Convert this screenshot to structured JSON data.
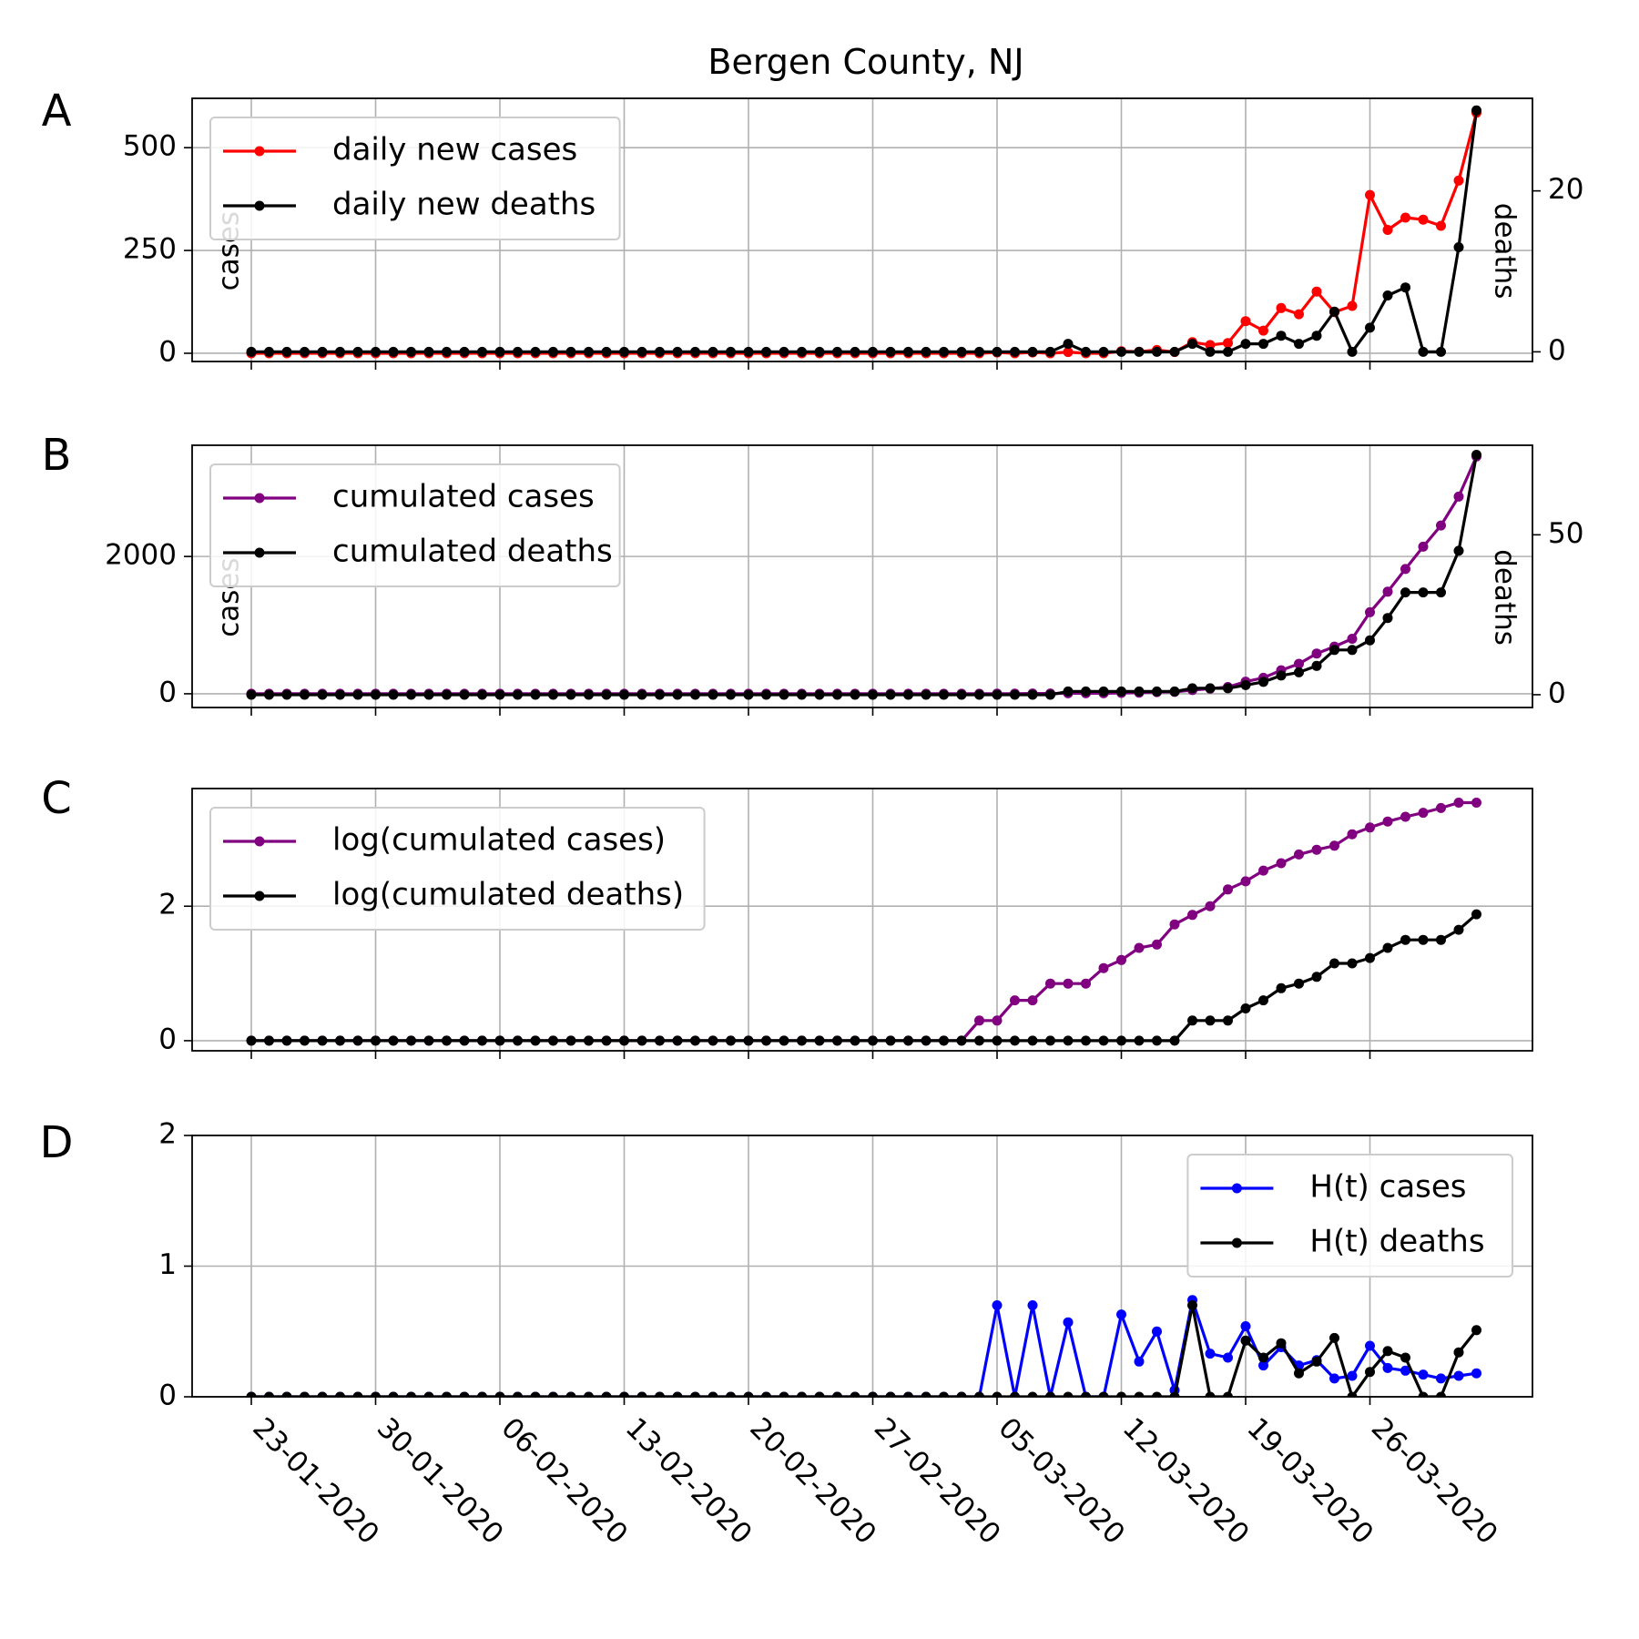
{
  "chart_data": {
    "type": "line",
    "title": "Bergen County, NJ",
    "x_tick_labels": [
      "23-01-2020",
      "30-01-2020",
      "06-02-2020",
      "13-02-2020",
      "20-02-2020",
      "27-02-2020",
      "05-03-2020",
      "12-03-2020",
      "19-03-2020",
      "26-03-2020"
    ],
    "x_start_date": "23-01-2020",
    "x": [
      "23-01-2020",
      "24-01-2020",
      "25-01-2020",
      "26-01-2020",
      "27-01-2020",
      "28-01-2020",
      "29-01-2020",
      "30-01-2020",
      "31-01-2020",
      "01-02-2020",
      "02-02-2020",
      "03-02-2020",
      "04-02-2020",
      "05-02-2020",
      "06-02-2020",
      "07-02-2020",
      "08-02-2020",
      "09-02-2020",
      "10-02-2020",
      "11-02-2020",
      "12-02-2020",
      "13-02-2020",
      "14-02-2020",
      "15-02-2020",
      "16-02-2020",
      "17-02-2020",
      "18-02-2020",
      "19-02-2020",
      "20-02-2020",
      "21-02-2020",
      "22-02-2020",
      "23-02-2020",
      "24-02-2020",
      "25-02-2020",
      "26-02-2020",
      "27-02-2020",
      "28-02-2020",
      "29-02-2020",
      "01-03-2020",
      "02-03-2020",
      "03-03-2020",
      "04-03-2020",
      "05-03-2020",
      "06-03-2020",
      "07-03-2020",
      "08-03-2020",
      "09-03-2020",
      "10-03-2020",
      "11-03-2020",
      "12-03-2020",
      "13-03-2020",
      "14-03-2020",
      "15-03-2020",
      "16-03-2020",
      "17-03-2020",
      "18-03-2020",
      "19-03-2020",
      "20-03-2020",
      "21-03-2020",
      "22-03-2020",
      "23-03-2020",
      "24-03-2020",
      "25-03-2020",
      "26-03-2020",
      "27-03-2020",
      "28-03-2020",
      "29-03-2020",
      "30-03-2020",
      "31-03-2020",
      "01-04-2020"
    ],
    "panels": [
      {
        "letter": "A",
        "left_label": "cases",
        "right_label": "deaths",
        "y_left_ticks": [
          0,
          250,
          500
        ],
        "y_left_range": [
          -20,
          620
        ],
        "y_right_ticks": [
          0,
          20
        ],
        "y_right_range": [
          -1.2,
          31.5
        ],
        "legend_position": "upper left",
        "series": [
          {
            "name": "daily new cases",
            "axis": "left",
            "color": "#ff0000",
            "values": [
              0,
              0,
              0,
              0,
              0,
              0,
              0,
              0,
              0,
              0,
              0,
              0,
              0,
              0,
              0,
              0,
              0,
              0,
              0,
              0,
              0,
              0,
              0,
              0,
              0,
              0,
              0,
              0,
              0,
              0,
              0,
              0,
              0,
              0,
              0,
              0,
              0,
              0,
              0,
              0,
              0,
              0,
              2,
              0,
              2,
              0,
              3,
              0,
              0,
              5,
              4,
              8,
              3,
              27,
              20,
              25,
              78,
              55,
              110,
              95,
              150,
              100,
              115,
              385,
              300,
              330,
              325,
              310,
              420,
              585
            ]
          },
          {
            "name": "daily new deaths",
            "axis": "right",
            "color": "#000000",
            "values": [
              0,
              0,
              0,
              0,
              0,
              0,
              0,
              0,
              0,
              0,
              0,
              0,
              0,
              0,
              0,
              0,
              0,
              0,
              0,
              0,
              0,
              0,
              0,
              0,
              0,
              0,
              0,
              0,
              0,
              0,
              0,
              0,
              0,
              0,
              0,
              0,
              0,
              0,
              0,
              0,
              0,
              0,
              0,
              0,
              0,
              0,
              1,
              0,
              0,
              0,
              0,
              0,
              0,
              1,
              0,
              0,
              1,
              1,
              2,
              1,
              2,
              5,
              0,
              3,
              7,
              8,
              0,
              0,
              13,
              30
            ]
          }
        ]
      },
      {
        "letter": "B",
        "left_label": "cases",
        "right_label": "deaths",
        "y_left_ticks": [
          0,
          2000
        ],
        "y_left_range": [
          -200,
          3620
        ],
        "y_right_ticks": [
          0,
          50
        ],
        "y_right_range": [
          -4,
          78
        ],
        "legend_position": "upper left",
        "series": [
          {
            "name": "cumulated cases",
            "axis": "left",
            "color": "#800080",
            "values": [
              0,
              0,
              0,
              0,
              0,
              0,
              0,
              0,
              0,
              0,
              0,
              0,
              0,
              0,
              0,
              0,
              0,
              0,
              0,
              0,
              0,
              0,
              0,
              0,
              0,
              0,
              0,
              0,
              0,
              0,
              0,
              0,
              0,
              0,
              0,
              0,
              0,
              0,
              0,
              0,
              0,
              0,
              2,
              2,
              4,
              4,
              7,
              7,
              7,
              12,
              16,
              24,
              27,
              54,
              74,
              99,
              177,
              232,
              342,
              437,
              587,
              687,
              802,
              1187,
              1487,
              1817,
              2142,
              2452,
              2872,
              3457
            ]
          },
          {
            "name": "cumulated deaths",
            "axis": "right",
            "color": "#000000",
            "values": [
              0,
              0,
              0,
              0,
              0,
              0,
              0,
              0,
              0,
              0,
              0,
              0,
              0,
              0,
              0,
              0,
              0,
              0,
              0,
              0,
              0,
              0,
              0,
              0,
              0,
              0,
              0,
              0,
              0,
              0,
              0,
              0,
              0,
              0,
              0,
              0,
              0,
              0,
              0,
              0,
              0,
              0,
              0,
              0,
              0,
              0,
              1,
              1,
              1,
              1,
              1,
              1,
              1,
              2,
              2,
              2,
              3,
              4,
              6,
              7,
              9,
              14,
              14,
              17,
              24,
              32,
              32,
              32,
              45,
              75
            ]
          }
        ]
      },
      {
        "letter": "C",
        "y_left_ticks": [
          0,
          2
        ],
        "y_left_range": [
          -0.15,
          3.75
        ],
        "legend_position": "upper left",
        "series": [
          {
            "name": "log(cumulated cases)",
            "axis": "left",
            "color": "#800080",
            "values": [
              0,
              0,
              0,
              0,
              0,
              0,
              0,
              0,
              0,
              0,
              0,
              0,
              0,
              0,
              0,
              0,
              0,
              0,
              0,
              0,
              0,
              0,
              0,
              0,
              0,
              0,
              0,
              0,
              0,
              0,
              0,
              0,
              0,
              0,
              0,
              0,
              0,
              0,
              0,
              0,
              0,
              0.3,
              0.3,
              0.6,
              0.6,
              0.85,
              0.85,
              0.85,
              1.08,
              1.2,
              1.38,
              1.43,
              1.73,
              1.87,
              2.0,
              2.25,
              2.37,
              2.53,
              2.64,
              2.77,
              2.84,
              2.9,
              3.07,
              3.17,
              3.26,
              3.33,
              3.39,
              3.46,
              3.54,
              3.54
            ]
          },
          {
            "name": "log(cumulated deaths)",
            "axis": "left",
            "color": "#000000",
            "values": [
              0,
              0,
              0,
              0,
              0,
              0,
              0,
              0,
              0,
              0,
              0,
              0,
              0,
              0,
              0,
              0,
              0,
              0,
              0,
              0,
              0,
              0,
              0,
              0,
              0,
              0,
              0,
              0,
              0,
              0,
              0,
              0,
              0,
              0,
              0,
              0,
              0,
              0,
              0,
              0,
              0,
              0,
              0,
              0,
              0,
              0,
              0,
              0,
              0,
              0,
              0,
              0,
              0,
              0.3,
              0.3,
              0.3,
              0.48,
              0.6,
              0.78,
              0.85,
              0.95,
              1.15,
              1.15,
              1.23,
              1.38,
              1.5,
              1.5,
              1.5,
              1.65,
              1.88
            ]
          }
        ]
      },
      {
        "letter": "D",
        "y_left_ticks": [
          0,
          1,
          2
        ],
        "y_left_range": [
          0,
          2
        ],
        "legend_position": "upper right",
        "series": [
          {
            "name": "H(t) cases",
            "axis": "left",
            "color": "#0000ff",
            "values": [
              0,
              0,
              0,
              0,
              0,
              0,
              0,
              0,
              0,
              0,
              0,
              0,
              0,
              0,
              0,
              0,
              0,
              0,
              0,
              0,
              0,
              0,
              0,
              0,
              0,
              0,
              0,
              0,
              0,
              0,
              0,
              0,
              0,
              0,
              0,
              0,
              0,
              0,
              0,
              0,
              0,
              0,
              0.7,
              0,
              0.7,
              0,
              0.57,
              0,
              0,
              0.63,
              0.27,
              0.5,
              0.05,
              0.74,
              0.33,
              0.3,
              0.54,
              0.24,
              0.38,
              0.24,
              0.28,
              0.14,
              0.16,
              0.39,
              0.22,
              0.2,
              0.17,
              0.14,
              0.16,
              0.18
            ]
          },
          {
            "name": "H(t) deaths",
            "axis": "left",
            "color": "#000000",
            "values": [
              0,
              0,
              0,
              0,
              0,
              0,
              0,
              0,
              0,
              0,
              0,
              0,
              0,
              0,
              0,
              0,
              0,
              0,
              0,
              0,
              0,
              0,
              0,
              0,
              0,
              0,
              0,
              0,
              0,
              0,
              0,
              0,
              0,
              0,
              0,
              0,
              0,
              0,
              0,
              0,
              0,
              0,
              0,
              0,
              0,
              0,
              0,
              0,
              0,
              0,
              0,
              0,
              0,
              0.7,
              0,
              0,
              0.43,
              0.3,
              0.41,
              0.18,
              0.27,
              0.45,
              0,
              0.19,
              0.35,
              0.3,
              0,
              0,
              0.34,
              0.51
            ]
          }
        ]
      }
    ]
  }
}
